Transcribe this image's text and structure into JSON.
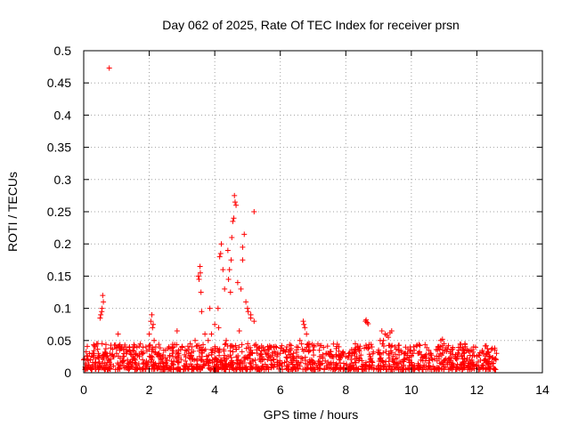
{
  "chart_data": {
    "type": "scatter",
    "title": "Day 062 of 2025, Rate Of TEC Index for receiver prsn",
    "xlabel": "GPS time / hours",
    "ylabel": "ROTI / TECUs",
    "xlim": [
      0,
      14
    ],
    "ylim": [
      0,
      0.5
    ],
    "xticks": [
      0,
      2,
      4,
      6,
      8,
      10,
      12,
      14
    ],
    "xtick_labels": [
      "0",
      "2",
      "4",
      "6",
      "8",
      "10",
      "12",
      "14"
    ],
    "yticks": [
      0,
      0.05,
      0.1,
      0.15,
      0.2,
      0.25,
      0.3,
      0.35,
      0.4,
      0.45,
      0.5
    ],
    "ytick_labels": [
      "0",
      "0.05",
      "0.1",
      "0.15",
      "0.2",
      "0.25",
      "0.3",
      "0.35",
      "0.4",
      "0.45",
      "0.5"
    ],
    "grid": true,
    "marker": "+",
    "series": [
      {
        "name": "ROTI",
        "color": "#ff0000",
        "x": [
          0.0,
          0.1,
          0.2,
          0.3,
          0.4,
          0.5,
          0.55,
          0.6,
          0.7,
          0.78,
          0.8,
          0.9,
          1.0,
          1.1,
          1.2,
          1.3,
          1.4,
          1.5,
          1.6,
          1.7,
          1.8,
          1.9,
          2.0,
          2.05,
          2.1,
          2.15,
          2.2,
          2.3,
          2.4,
          2.5,
          2.6,
          2.7,
          2.8,
          2.9,
          3.0,
          3.1,
          3.2,
          3.3,
          3.4,
          3.5,
          3.55,
          3.6,
          3.7,
          3.8,
          3.9,
          4.0,
          4.1,
          4.15,
          4.2,
          4.3,
          4.4,
          4.45,
          4.5,
          4.55,
          4.6,
          4.65,
          4.7,
          4.8,
          4.85,
          4.9,
          5.0,
          5.1,
          5.2,
          5.3,
          5.4,
          5.5,
          5.6,
          5.7,
          5.8,
          5.9,
          6.0,
          6.1,
          6.2,
          6.3,
          6.4,
          6.5,
          6.6,
          6.7,
          6.8,
          6.9,
          7.0,
          7.2,
          7.4,
          7.6,
          7.8,
          8.0,
          8.2,
          8.4,
          8.6,
          8.65,
          8.8,
          9.0,
          9.1,
          9.2,
          9.3,
          9.4,
          9.5,
          9.6,
          9.8,
          10.0,
          10.2,
          10.4,
          10.6,
          10.8,
          10.9,
          11.0,
          11.2,
          11.4,
          11.6,
          11.8,
          11.9,
          12.0,
          12.2,
          12.4,
          12.6,
          0.52,
          0.56,
          0.58,
          2.08,
          2.12,
          3.52,
          3.56,
          3.58,
          4.12,
          4.18,
          4.25,
          4.42,
          4.48,
          4.52,
          4.58,
          4.62,
          4.85,
          4.95,
          5.02,
          5.1,
          5.2,
          6.72,
          6.75,
          8.62,
          8.68,
          9.15,
          9.25,
          9.35,
          10.95,
          11.85,
          0.35,
          0.45,
          1.05,
          2.85,
          3.25,
          3.85,
          4.05,
          4.35,
          4.75,
          5.15,
          5.45,
          7.55,
          9.05,
          10.65,
          12.35
        ],
        "y": [
          0.02,
          0.025,
          0.02,
          0.03,
          0.045,
          0.085,
          0.095,
          0.11,
          0.025,
          0.473,
          0.03,
          0.025,
          0.03,
          0.035,
          0.025,
          0.03,
          0.04,
          0.035,
          0.03,
          0.025,
          0.03,
          0.04,
          0.06,
          0.08,
          0.07,
          0.05,
          0.04,
          0.03,
          0.025,
          0.035,
          0.04,
          0.03,
          0.025,
          0.03,
          0.04,
          0.035,
          0.03,
          0.04,
          0.05,
          0.15,
          0.165,
          0.095,
          0.06,
          0.05,
          0.06,
          0.075,
          0.1,
          0.18,
          0.2,
          0.13,
          0.19,
          0.16,
          0.175,
          0.235,
          0.275,
          0.26,
          0.14,
          0.13,
          0.195,
          0.215,
          0.1,
          0.085,
          0.25,
          0.04,
          0.03,
          0.035,
          0.03,
          0.025,
          0.02,
          0.025,
          0.03,
          0.035,
          0.04,
          0.035,
          0.03,
          0.04,
          0.05,
          0.08,
          0.06,
          0.045,
          0.035,
          0.025,
          0.03,
          0.025,
          0.02,
          0.025,
          0.03,
          0.035,
          0.08,
          0.078,
          0.04,
          0.035,
          0.065,
          0.06,
          0.055,
          0.065,
          0.04,
          0.035,
          0.03,
          0.025,
          0.03,
          0.025,
          0.03,
          0.035,
          0.05,
          0.045,
          0.03,
          0.025,
          0.03,
          0.035,
          0.04,
          0.025,
          0.03,
          0.025,
          0.03,
          0.09,
          0.1,
          0.12,
          0.09,
          0.075,
          0.145,
          0.155,
          0.125,
          0.07,
          0.185,
          0.16,
          0.145,
          0.125,
          0.21,
          0.24,
          0.265,
          0.175,
          0.11,
          0.095,
          0.09,
          0.08,
          0.075,
          0.07,
          0.082,
          0.076,
          0.05,
          0.058,
          0.062,
          0.052,
          0.035,
          0.04,
          0.03,
          0.06,
          0.065,
          0.045,
          0.1,
          0.02,
          0.05,
          0.065,
          0.03,
          0.02,
          0.015,
          0.05,
          0.02,
          0.015
        ]
      }
    ],
    "dense_band": {
      "x_range": [
        0,
        12.6
      ],
      "y_range": [
        0.005,
        0.045
      ],
      "count": 1400,
      "seed": 62
    }
  }
}
